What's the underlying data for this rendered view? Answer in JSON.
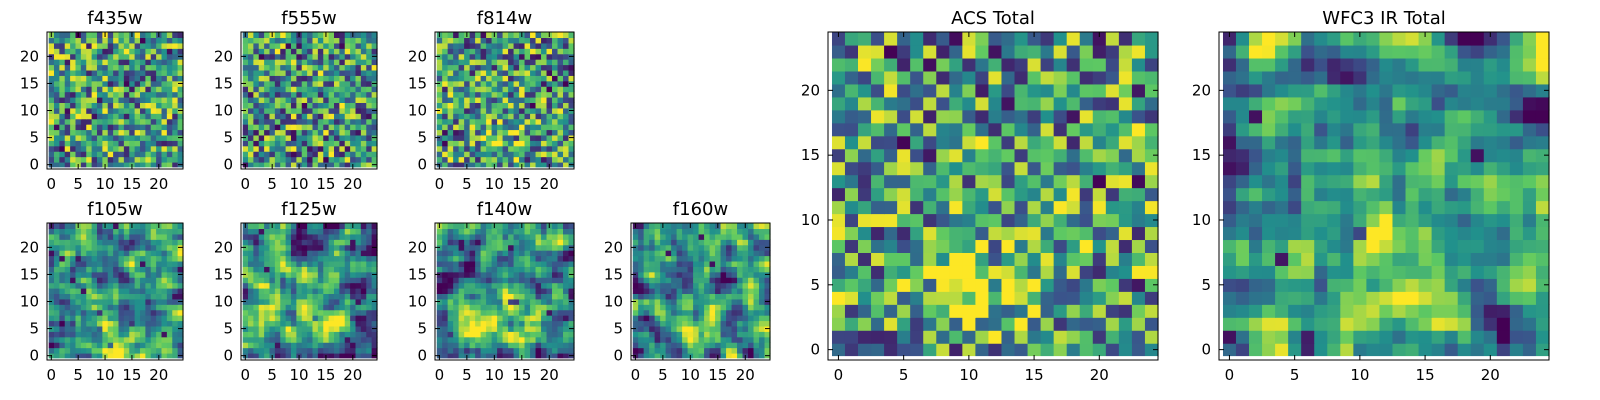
{
  "colormap": "viridis",
  "colormap_stops": [
    "#440154",
    "#3b528b",
    "#21918c",
    "#5ec962",
    "#fde725"
  ],
  "chart_data": [
    {
      "type": "heatmap",
      "title": "f435w",
      "grid_size": 25,
      "xlim": [
        0,
        24
      ],
      "ylim": [
        0,
        24
      ],
      "xticks": [
        0,
        5,
        10,
        15,
        20
      ],
      "yticks": [
        0,
        5,
        10,
        15,
        20
      ],
      "pattern": "noise",
      "seed": 11,
      "source": null
    },
    {
      "type": "heatmap",
      "title": "f555w",
      "grid_size": 25,
      "xlim": [
        0,
        24
      ],
      "ylim": [
        0,
        24
      ],
      "xticks": [
        0,
        5,
        10,
        15,
        20
      ],
      "yticks": [
        0,
        5,
        10,
        15,
        20
      ],
      "pattern": "noise",
      "seed": 23,
      "source": null
    },
    {
      "type": "heatmap",
      "title": "f814w",
      "grid_size": 25,
      "xlim": [
        0,
        24
      ],
      "ylim": [
        0,
        24
      ],
      "xticks": [
        0,
        5,
        10,
        15,
        20
      ],
      "yticks": [
        0,
        5,
        10,
        15,
        20
      ],
      "pattern": "noise_with_faint_source",
      "seed": 37,
      "source": {
        "x": 11,
        "y": 5,
        "sigma": 2.5,
        "amp": 0.25
      }
    },
    {
      "type": "heatmap",
      "title": "f105w",
      "grid_size": 25,
      "xlim": [
        0,
        24
      ],
      "ylim": [
        0,
        24
      ],
      "xticks": [
        0,
        5,
        10,
        15,
        20
      ],
      "yticks": [
        0,
        5,
        10,
        15,
        20
      ],
      "pattern": "smooth_with_source",
      "seed": 41,
      "source": {
        "x": 11,
        "y": 4,
        "sigma": 3,
        "amp": 0.35
      }
    },
    {
      "type": "heatmap",
      "title": "f125w",
      "grid_size": 25,
      "xlim": [
        0,
        24
      ],
      "ylim": [
        0,
        24
      ],
      "xticks": [
        0,
        5,
        10,
        15,
        20
      ],
      "yticks": [
        0,
        5,
        10,
        15,
        20
      ],
      "pattern": "smooth_with_source",
      "seed": 53,
      "source": {
        "x": 13,
        "y": 7,
        "sigma": 3,
        "amp": 0.35
      }
    },
    {
      "type": "heatmap",
      "title": "f140w",
      "grid_size": 25,
      "xlim": [
        0,
        24
      ],
      "ylim": [
        0,
        24
      ],
      "xticks": [
        0,
        5,
        10,
        15,
        20
      ],
      "yticks": [
        0,
        5,
        10,
        15,
        20
      ],
      "pattern": "smooth_with_source",
      "seed": 67,
      "source": {
        "x": 11,
        "y": 6,
        "sigma": 3.5,
        "amp": 0.35
      }
    },
    {
      "type": "heatmap",
      "title": "f160w",
      "grid_size": 25,
      "xlim": [
        0,
        24
      ],
      "ylim": [
        0,
        24
      ],
      "xticks": [
        0,
        5,
        10,
        15,
        20
      ],
      "yticks": [
        0,
        5,
        10,
        15,
        20
      ],
      "pattern": "smooth_with_source",
      "seed": 79,
      "source": {
        "x": 11,
        "y": 5,
        "sigma": 3,
        "amp": 0.4
      }
    },
    {
      "type": "heatmap",
      "title": "ACS Total",
      "grid_size": 25,
      "xlim": [
        0,
        24
      ],
      "ylim": [
        0,
        24
      ],
      "xticks": [
        0,
        5,
        10,
        15,
        20
      ],
      "yticks": [
        0,
        5,
        10,
        15,
        20
      ],
      "pattern": "noise_with_faint_source",
      "seed": 97,
      "source": {
        "x": 11,
        "y": 5,
        "sigma": 3,
        "amp": 0.3
      }
    },
    {
      "type": "heatmap",
      "title": "WFC3 IR Total",
      "grid_size": 25,
      "xlim": [
        0,
        24
      ],
      "ylim": [
        0,
        24
      ],
      "xticks": [
        0,
        5,
        10,
        15,
        20
      ],
      "yticks": [
        0,
        5,
        10,
        15,
        20
      ],
      "pattern": "smooth_with_source",
      "seed": 113,
      "source": {
        "x": 12,
        "y": 5,
        "sigma": 3.2,
        "amp": 0.45
      }
    }
  ]
}
